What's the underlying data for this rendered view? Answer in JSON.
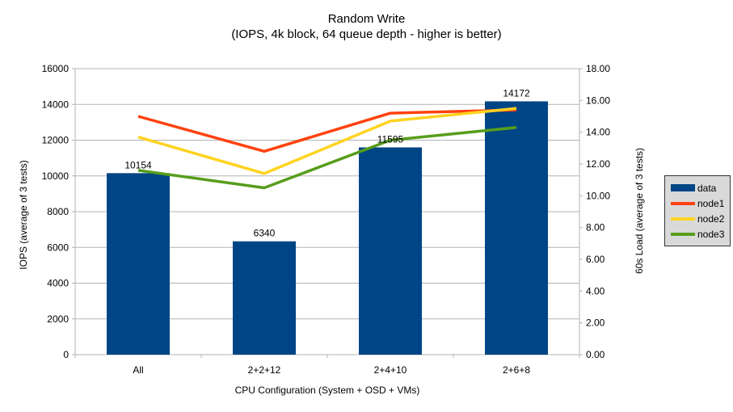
{
  "chart_data": {
    "type": "bar+line",
    "title": "Random Write",
    "subtitle": "(IOPS, 4k block, 64 queue depth - higher is better)",
    "categories": [
      "All",
      "2+2+12",
      "2+4+10",
      "2+6+8"
    ],
    "xlabel": "CPU Configuration (System + OSD + VMs)",
    "ylabel_left": "IOPS (average of 3 tests)",
    "ylabel_right": "60s Load (average of 3 tests)",
    "left_axis": {
      "min": 0,
      "max": 16000,
      "step": 2000,
      "tick_labels": [
        "0",
        "2000",
        "4000",
        "6000",
        "8000",
        "10000",
        "12000",
        "14000",
        "16000"
      ]
    },
    "right_axis": {
      "min": 0,
      "max": 18,
      "step": 2,
      "tick_labels": [
        "0.00",
        "2.00",
        "4.00",
        "6.00",
        "8.00",
        "10.00",
        "12.00",
        "14.00",
        "16.00",
        "18.00"
      ]
    },
    "series": [
      {
        "name": "data",
        "type": "bar",
        "axis": "left",
        "color": "#004586",
        "values": [
          10154,
          6340,
          11595,
          14172
        ],
        "data_labels": [
          "10154",
          "6340",
          "11595",
          "14172"
        ]
      },
      {
        "name": "node1",
        "type": "line",
        "axis": "right",
        "color": "#ff420e",
        "values": [
          15.0,
          12.8,
          15.2,
          15.4
        ]
      },
      {
        "name": "node2",
        "type": "line",
        "axis": "right",
        "color": "#ffd320",
        "values": [
          13.7,
          11.4,
          14.7,
          15.5
        ]
      },
      {
        "name": "node3",
        "type": "line",
        "axis": "right",
        "color": "#579d1c",
        "values": [
          11.6,
          10.5,
          13.5,
          14.3
        ]
      }
    ],
    "grid": true,
    "grid_color": "#b3b3b3",
    "axis_color": "#b3b3b3",
    "legend_position": "right",
    "legend_bg": "#d9d9d9"
  }
}
